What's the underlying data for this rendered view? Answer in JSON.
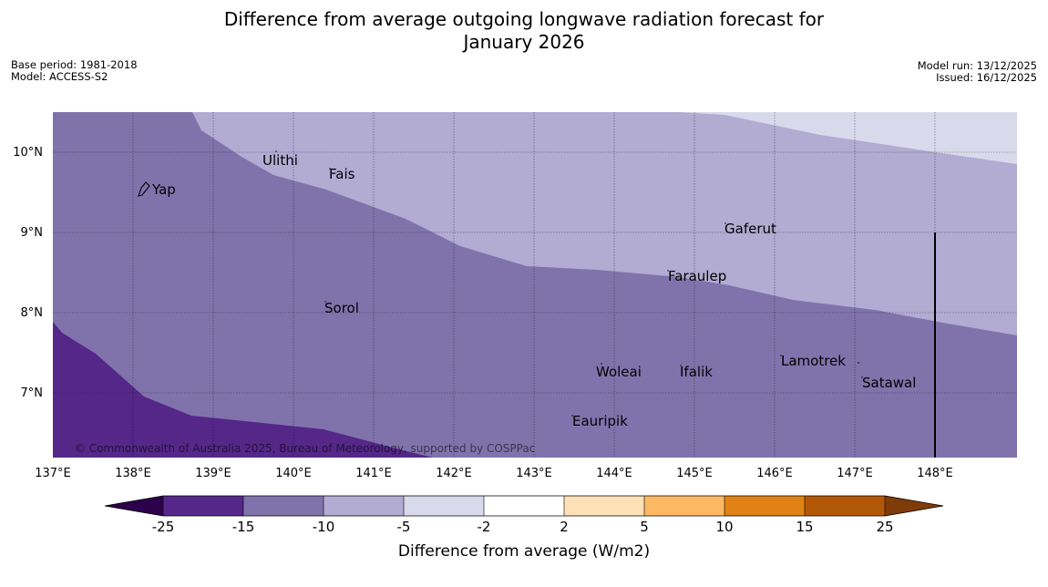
{
  "title": {
    "line1": "Difference from average outgoing longwave radiation forecast for",
    "line2": "January 2026"
  },
  "meta_left": {
    "base_period": "Base period: 1981-2018",
    "model": "Model: ACCESS-S2"
  },
  "meta_right": {
    "model_run": "Model run: 13/12/2025",
    "issued": "Issued: 16/12/2025"
  },
  "map": {
    "lon_labels": [
      "137°E",
      "138°E",
      "139°E",
      "140°E",
      "141°E",
      "142°E",
      "143°E",
      "144°E",
      "145°E",
      "146°E",
      "147°E",
      "148°E"
    ],
    "lat_labels": [
      "10°N",
      "9°N",
      "8°N",
      "7°N"
    ],
    "places": {
      "ulithi": "Ulithi",
      "fais": "Fais",
      "yap": "Yap",
      "gaferut": "Gaferut",
      "faraulep": "Faraulep",
      "sorol": "Sorol",
      "woleai": "Woleai",
      "ifalik": "Ifalik",
      "lamotrek": "Lamotrek",
      "satawal": "Satawal",
      "eauripik": "Eauripik"
    },
    "copyright": "© Commonwealth of Australia 2025, Bureau of Meteorology, supported by COSPPac",
    "colors": {
      "le_-25": "#2d004b",
      "-25_-15": "#542788",
      "-15_-10": "#8073ac",
      "-10_-5": "#b2abd2",
      "-5_-2": "#d8daeb",
      "-2_2": "#ffffff",
      "2_5": "#fee0b6",
      "5_10": "#fdb863",
      "10_15": "#e08214",
      "15_25": "#b35806",
      "ge_25": "#7f3b08"
    }
  },
  "colorbar": {
    "ticks": [
      "-25",
      "-15",
      "-10",
      "-5",
      "-2",
      "2",
      "5",
      "10",
      "15",
      "25"
    ],
    "label": "Difference from average (W/m2)"
  }
}
